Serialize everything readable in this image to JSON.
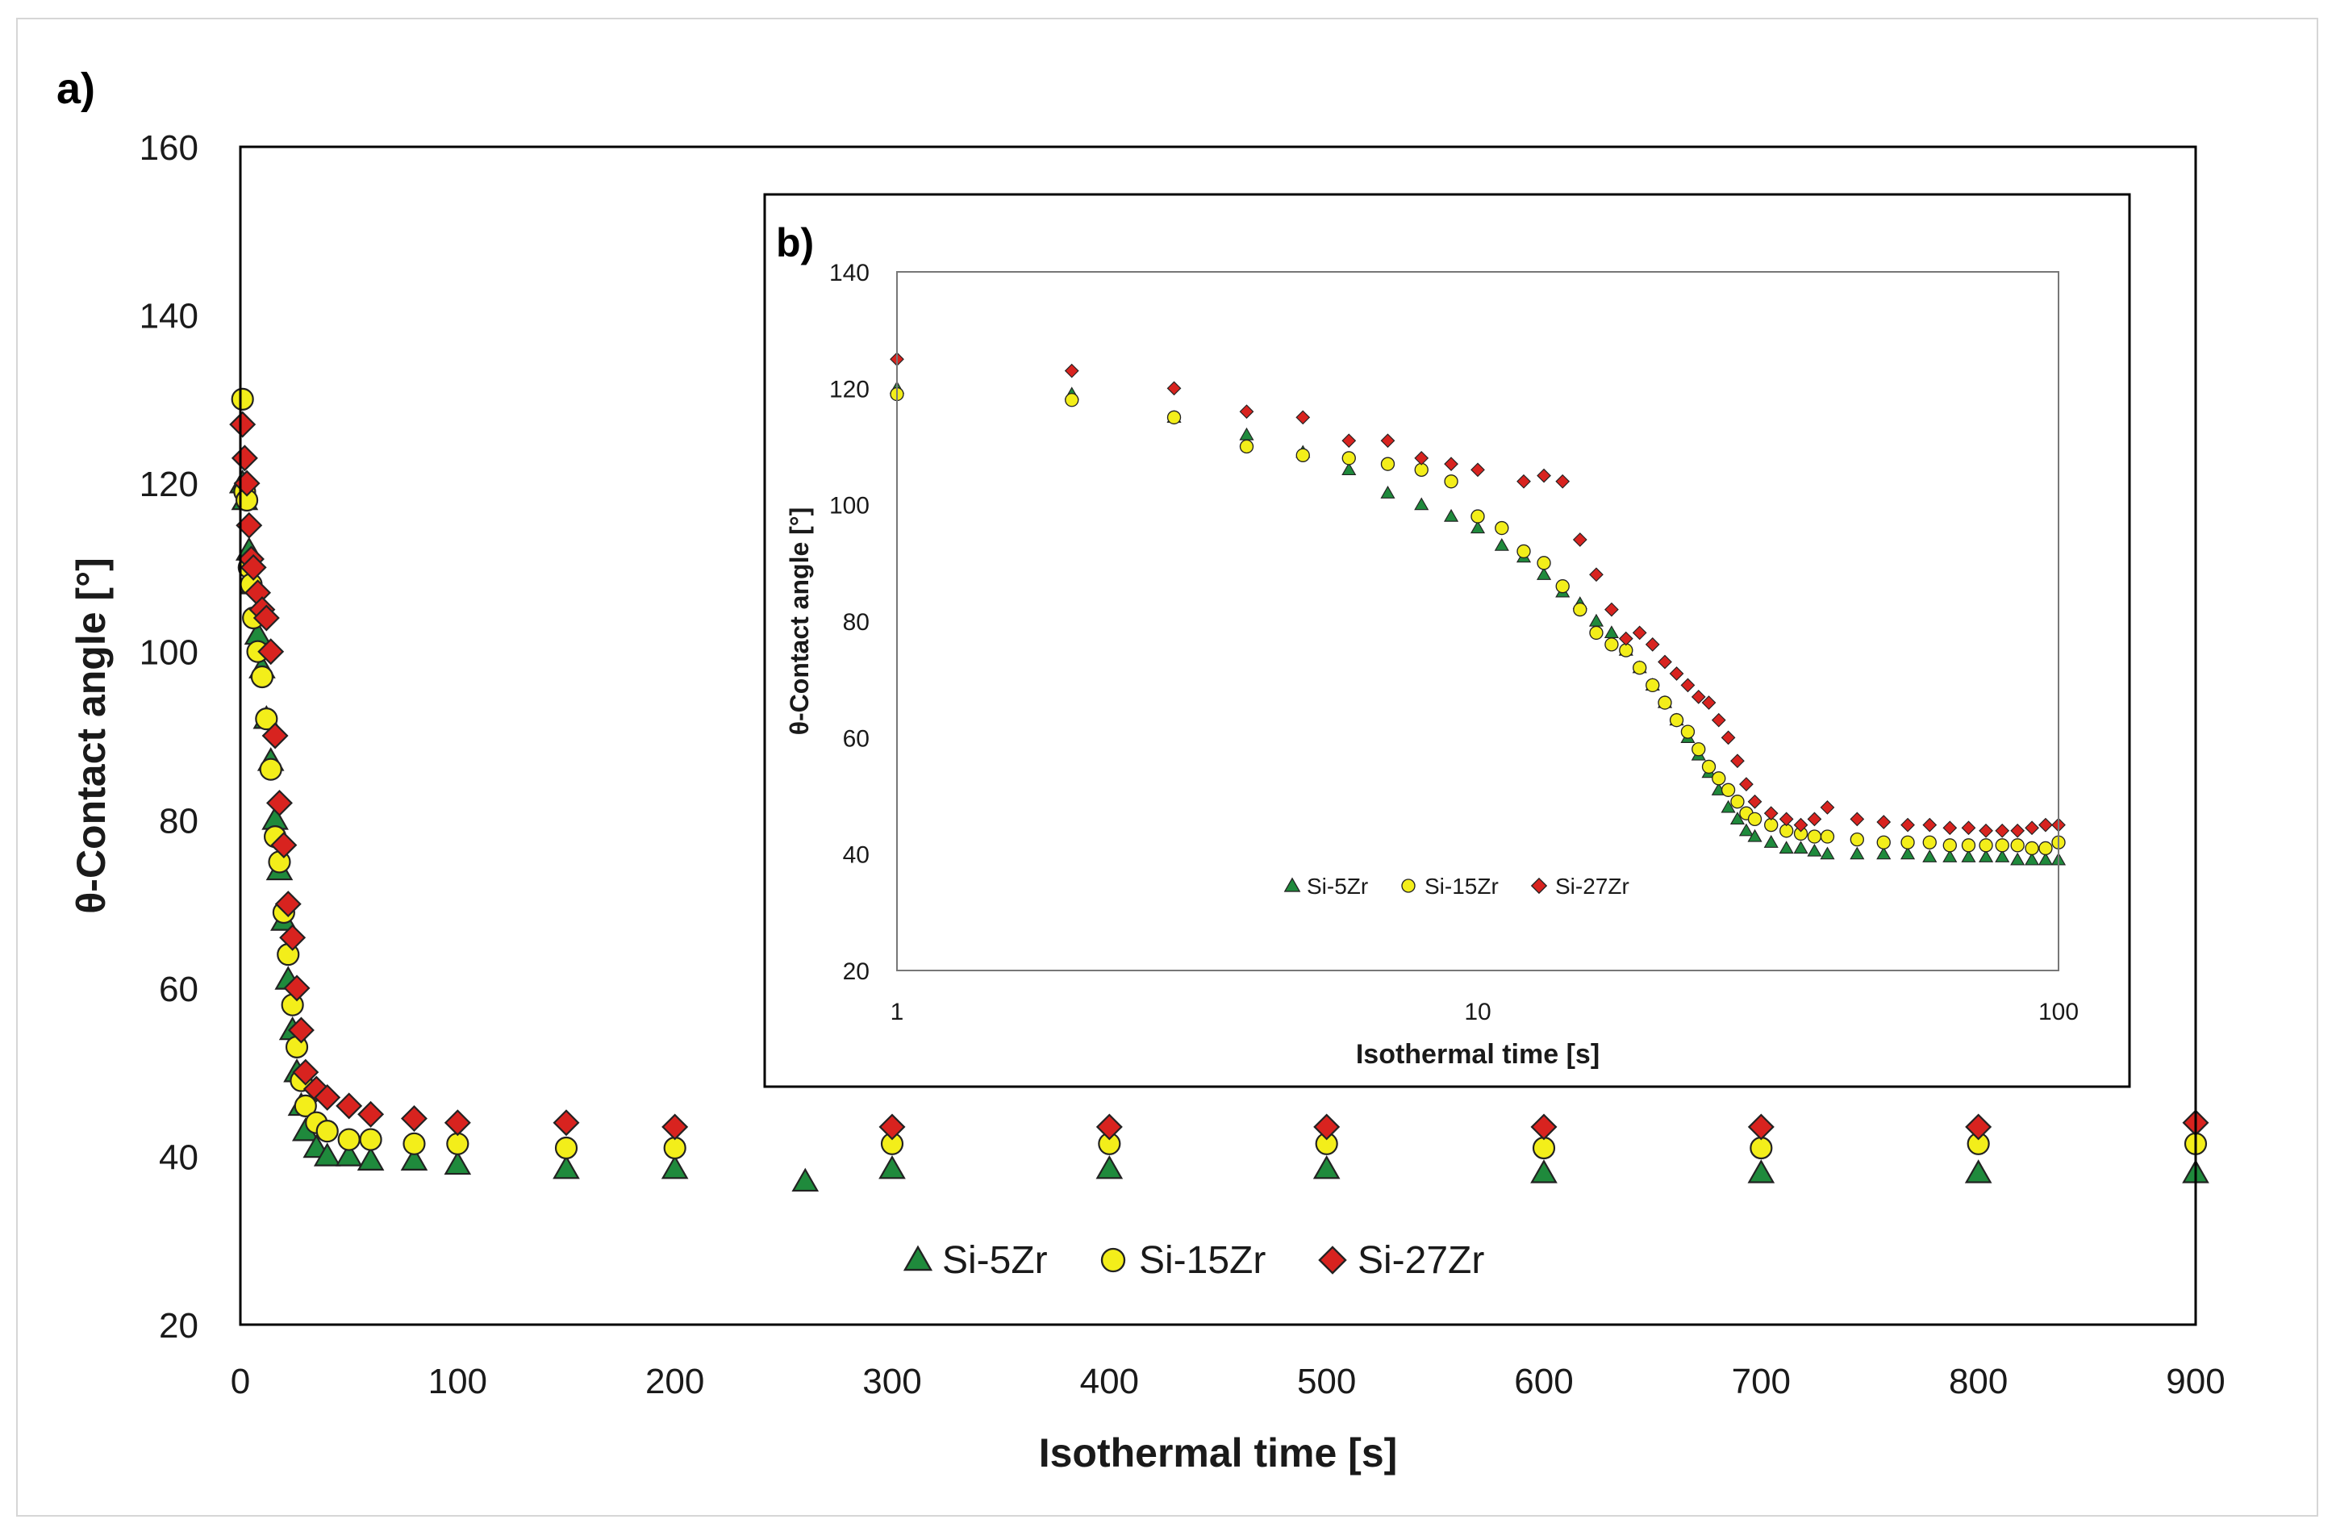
{
  "colors": {
    "si5": "#1f8a3c",
    "si15": "#f3ee1a",
    "si27": "#d8231f",
    "stroke": "#222222"
  },
  "chart_data": [
    {
      "panel": "a)",
      "type": "scatter",
      "xlabel": "Isothermal time [s]",
      "ylabel": "θ-Contact angle [°]",
      "xlim": [
        0,
        900
      ],
      "ylim": [
        20,
        160
      ],
      "xticks": [
        0,
        100,
        200,
        300,
        400,
        500,
        600,
        700,
        800,
        900
      ],
      "yticks": [
        20,
        40,
        60,
        80,
        100,
        120,
        140,
        160
      ],
      "legend": [
        "Si-5Zr",
        "Si-15Zr",
        "Si-27Zr"
      ],
      "legend_position": "bottom-center",
      "series": [
        {
          "name": "Si-5Zr",
          "marker": "triangle",
          "x": [
            1,
            2,
            4,
            6,
            8,
            10,
            12,
            14,
            16,
            18,
            20,
            22,
            24,
            26,
            28,
            30,
            35,
            40,
            50,
            60,
            80,
            100,
            150,
            200,
            260,
            300,
            400,
            500,
            600,
            700,
            800,
            900
          ],
          "y": [
            120,
            118,
            112,
            108,
            102,
            98,
            92,
            87,
            80,
            74,
            68,
            61,
            55,
            50,
            46,
            43,
            41,
            40,
            40,
            39.5,
            39.5,
            39,
            38.5,
            38.5,
            37,
            38.5,
            38.5,
            38.5,
            38,
            38,
            38,
            38
          ]
        },
        {
          "name": "Si-15Zr",
          "marker": "circle",
          "x": [
            1,
            2,
            3,
            4,
            5,
            6,
            8,
            10,
            12,
            14,
            16,
            18,
            20,
            22,
            24,
            26,
            28,
            30,
            35,
            40,
            50,
            60,
            80,
            100,
            150,
            200,
            300,
            400,
            500,
            600,
            700,
            800,
            900
          ],
          "y": [
            130,
            119,
            118,
            110,
            108,
            104,
            100,
            97,
            92,
            86,
            78,
            75,
            69,
            64,
            58,
            53,
            49,
            46,
            44,
            43,
            42,
            42,
            41.5,
            41.5,
            41,
            41,
            41.5,
            41.5,
            41.5,
            41,
            41,
            41.5,
            41.5
          ]
        },
        {
          "name": "Si-27Zr",
          "marker": "diamond",
          "x": [
            1,
            2,
            3,
            4,
            5,
            6,
            8,
            10,
            12,
            14,
            16,
            18,
            20,
            22,
            24,
            26,
            28,
            30,
            35,
            40,
            50,
            60,
            80,
            100,
            150,
            200,
            300,
            400,
            500,
            600,
            700,
            800,
            900
          ],
          "y": [
            127,
            123,
            120,
            115,
            111,
            110,
            107,
            105,
            104,
            100,
            90,
            82,
            77,
            70,
            66,
            60,
            55,
            50,
            48,
            47,
            46,
            45,
            44.5,
            44,
            44,
            43.5,
            43.5,
            43.5,
            43.5,
            43.5,
            43.5,
            43.5,
            44
          ]
        }
      ]
    },
    {
      "panel": "b)",
      "type": "scatter",
      "xscale": "log",
      "xlabel": "Isothermal time [s]",
      "ylabel": "θ-Contact angle [°]",
      "xlim": [
        1,
        100
      ],
      "ylim": [
        20,
        140
      ],
      "xticks": [
        1,
        10,
        100
      ],
      "yticks": [
        20,
        40,
        60,
        80,
        100,
        120,
        140
      ],
      "legend": [
        "Si-5Zr",
        "Si-15Zr",
        "Si-27Zr"
      ],
      "legend_position": "bottom-left",
      "series": [
        {
          "name": "Si-5Zr",
          "marker": "triangle",
          "x": [
            1,
            2,
            3,
            4,
            5,
            6,
            7,
            8,
            9,
            10,
            11,
            12,
            13,
            14,
            15,
            16,
            17,
            18,
            19,
            20,
            21,
            22,
            23,
            24,
            25,
            26,
            27,
            28,
            29,
            30,
            32,
            34,
            36,
            38,
            40,
            45,
            50,
            55,
            60,
            65,
            70,
            75,
            80,
            85,
            90,
            95,
            100
          ],
          "y": [
            120,
            119,
            115,
            112,
            109,
            106,
            102,
            100,
            98,
            96,
            93,
            91,
            88,
            85,
            83,
            80,
            78,
            75,
            72,
            69,
            66,
            63,
            60,
            57,
            54,
            51,
            48,
            46,
            44,
            43,
            42,
            41,
            41,
            40.5,
            40,
            40,
            40,
            40,
            39.5,
            39.5,
            39.5,
            39.5,
            39.5,
            39,
            39,
            39,
            39
          ]
        },
        {
          "name": "Si-15Zr",
          "marker": "circle",
          "x": [
            1,
            2,
            3,
            4,
            5,
            6,
            7,
            8,
            9,
            10,
            11,
            12,
            13,
            14,
            15,
            16,
            17,
            18,
            19,
            20,
            21,
            22,
            23,
            24,
            25,
            26,
            27,
            28,
            29,
            30,
            32,
            34,
            36,
            38,
            40,
            45,
            50,
            55,
            60,
            65,
            70,
            75,
            80,
            85,
            90,
            95,
            100
          ],
          "y": [
            119,
            118,
            115,
            110,
            108.5,
            108,
            107,
            106,
            104,
            98,
            96,
            92,
            90,
            86,
            82,
            78,
            76,
            75,
            72,
            69,
            66,
            63,
            61,
            58,
            55,
            53,
            51,
            49,
            47,
            46,
            45,
            44,
            43.5,
            43,
            43,
            42.5,
            42,
            42,
            42,
            41.5,
            41.5,
            41.5,
            41.5,
            41.5,
            41,
            41,
            42
          ]
        },
        {
          "name": "Si-27Zr",
          "marker": "diamond",
          "x": [
            1,
            2,
            3,
            4,
            5,
            6,
            7,
            8,
            9,
            10,
            12,
            13,
            14,
            15,
            16,
            17,
            18,
            19,
            20,
            21,
            22,
            23,
            24,
            25,
            26,
            27,
            28,
            29,
            30,
            32,
            34,
            36,
            38,
            40,
            45,
            50,
            55,
            60,
            65,
            70,
            75,
            80,
            85,
            90,
            95,
            100
          ],
          "y": [
            125,
            123,
            120,
            116,
            115,
            111,
            111,
            108,
            107,
            106,
            104,
            105,
            104,
            94,
            88,
            82,
            77,
            78,
            76,
            73,
            71,
            69,
            67,
            66,
            63,
            60,
            56,
            52,
            49,
            47,
            46,
            45,
            46,
            48,
            46,
            45.5,
            45,
            45,
            44.5,
            44.5,
            44,
            44,
            44,
            44.5,
            45,
            45
          ]
        }
      ]
    }
  ]
}
